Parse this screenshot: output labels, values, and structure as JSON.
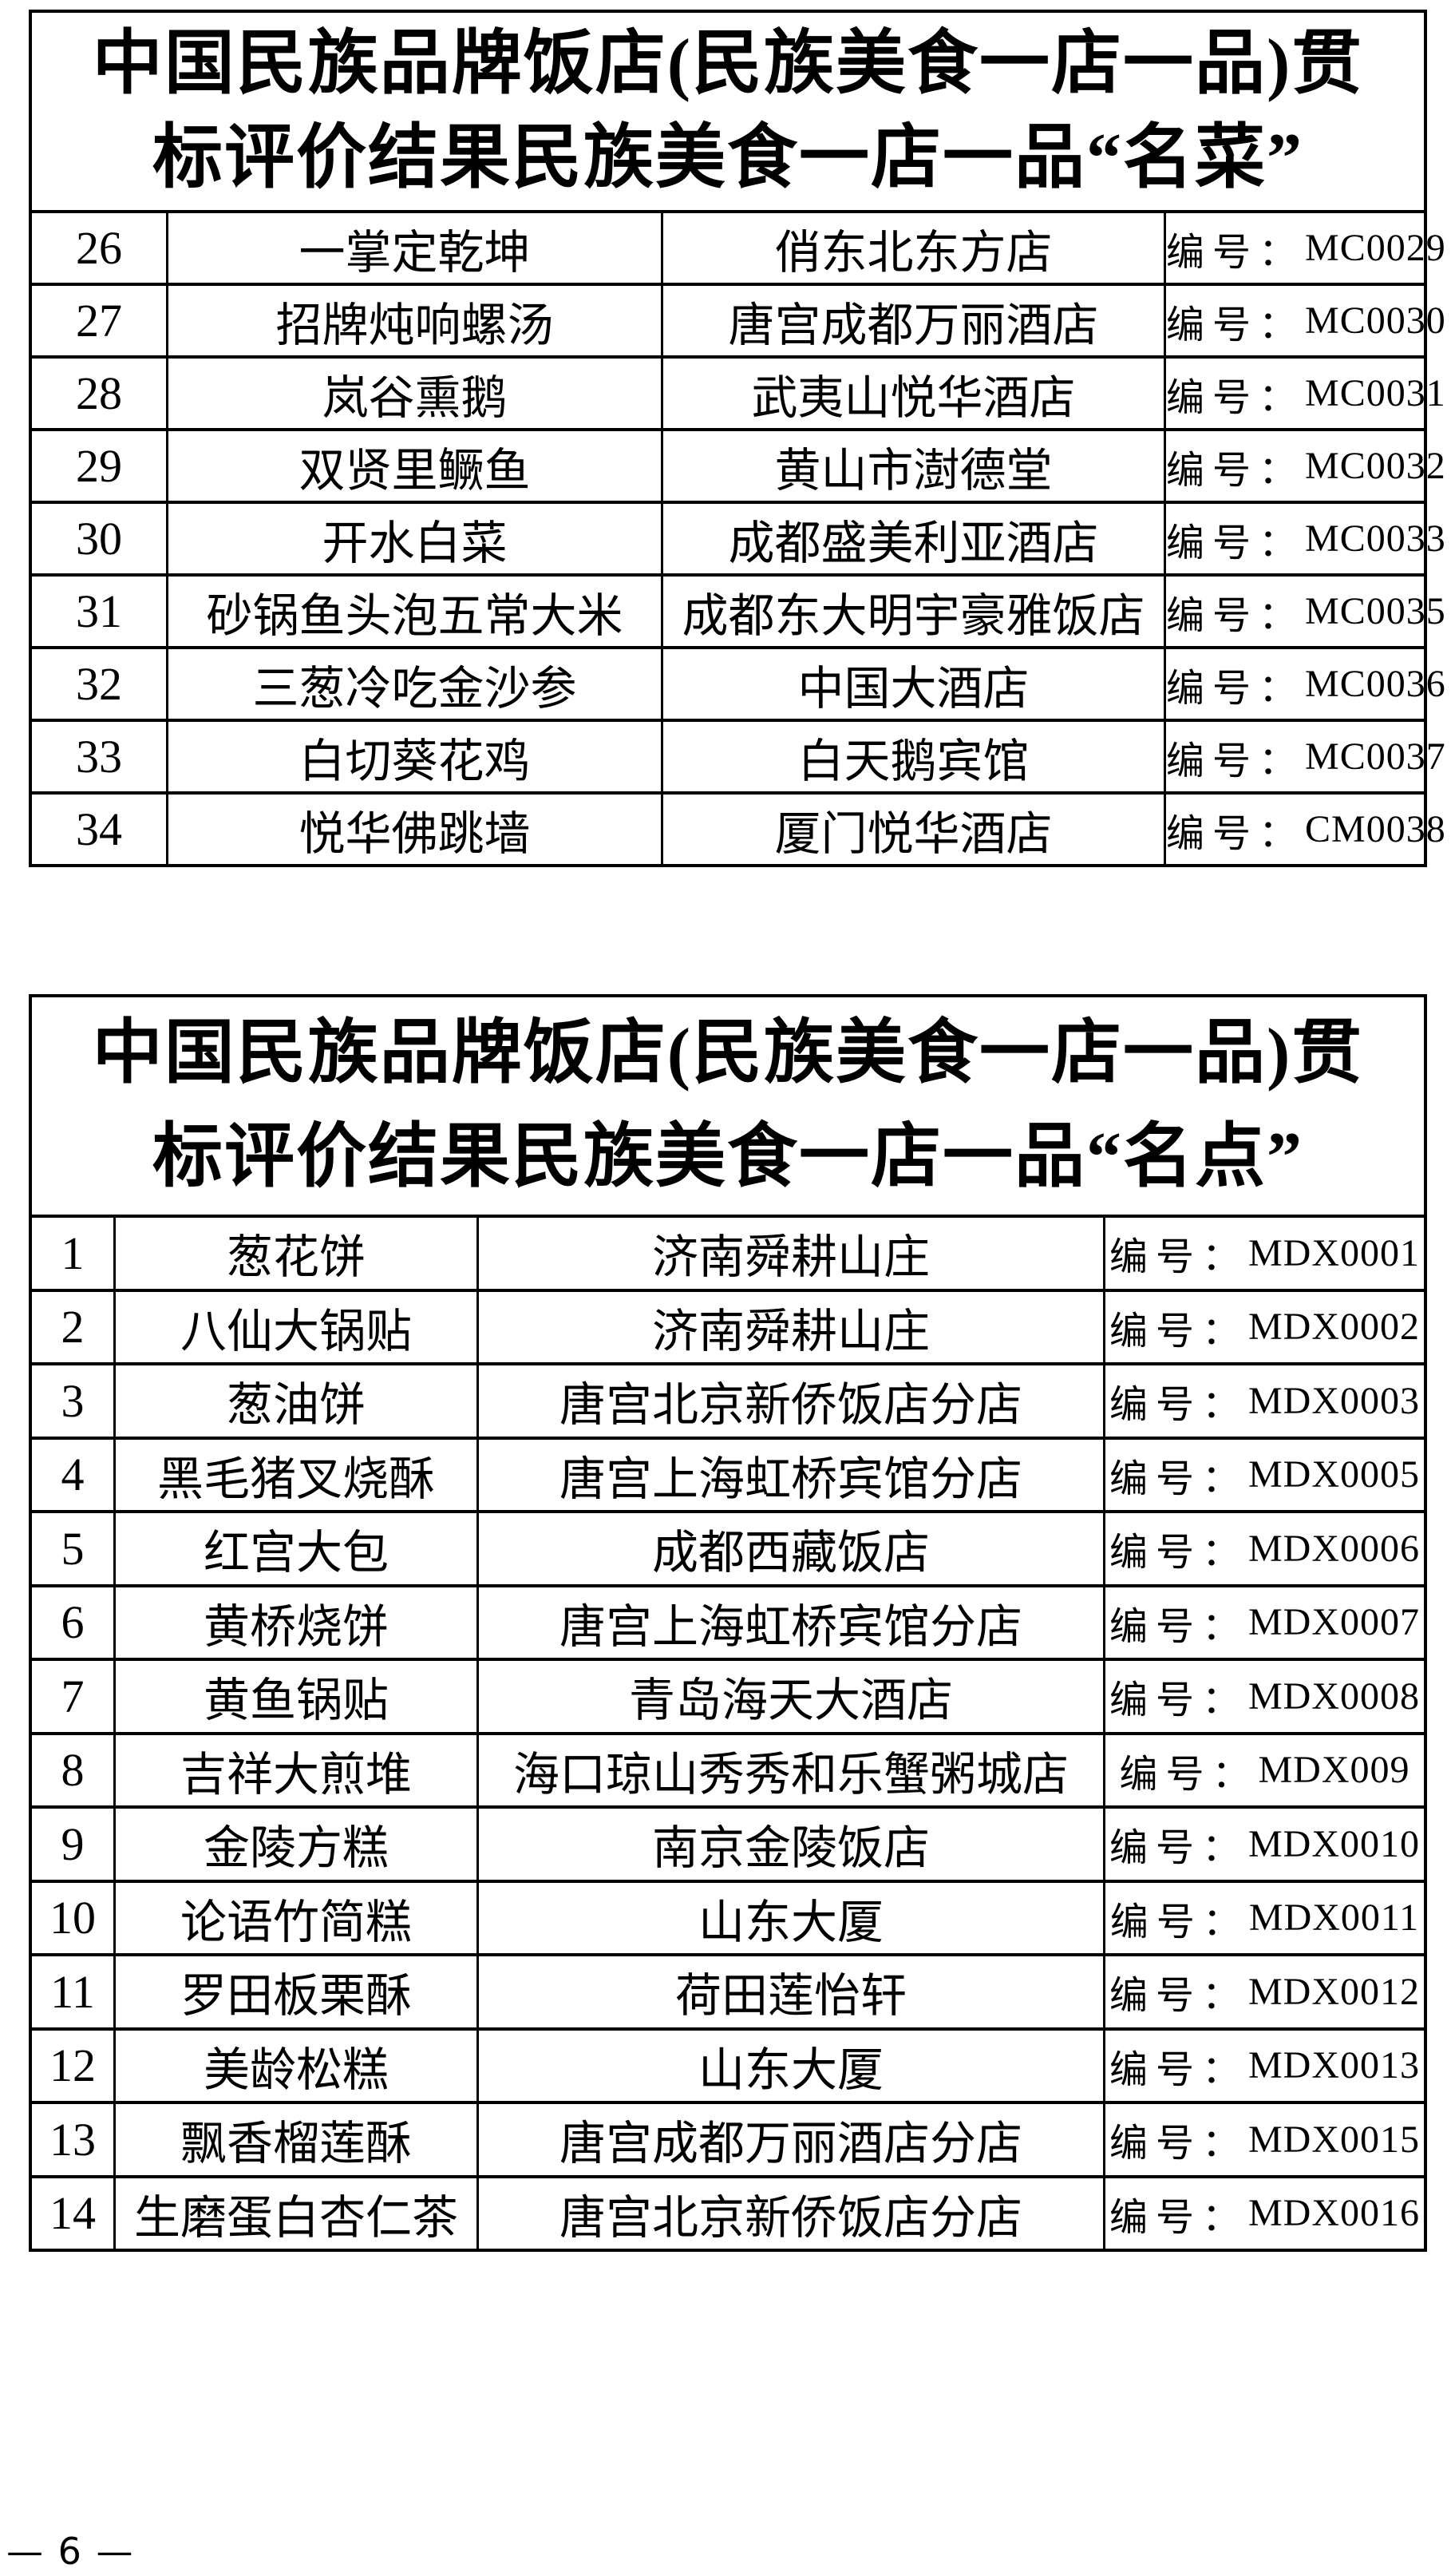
{
  "page": {
    "number_label": "— 6 —"
  },
  "table_mc": {
    "title_line1": "中国民族品牌饭店(民族美食一店一品)贯",
    "title_line2": "标评价结果民族美食一店一品“名菜”",
    "code_label": "编号：",
    "rows": [
      {
        "no": "26",
        "dish": "一掌定乾坤",
        "restaurant": "俏东北东方店",
        "code": "MC0029"
      },
      {
        "no": "27",
        "dish": "招牌炖响螺汤",
        "restaurant": "唐宫成都万丽酒店",
        "code": "MC0030"
      },
      {
        "no": "28",
        "dish": "岚谷熏鹅",
        "restaurant": "武夷山悦华酒店",
        "code": "MC0031"
      },
      {
        "no": "29",
        "dish": "双贤里鳜鱼",
        "restaurant": "黄山市澍德堂",
        "code": "MC0032"
      },
      {
        "no": "30",
        "dish": "开水白菜",
        "restaurant": "成都盛美利亚酒店",
        "code": "MC0033"
      },
      {
        "no": "31",
        "dish": "砂锅鱼头泡五常大米",
        "restaurant": "成都东大明宇豪雅饭店",
        "code": "MC0035"
      },
      {
        "no": "32",
        "dish": "三葱冷吃金沙参",
        "restaurant": "中国大酒店",
        "code": "MC0036"
      },
      {
        "no": "33",
        "dish": "白切葵花鸡",
        "restaurant": "白天鹅宾馆",
        "code": "MC0037"
      },
      {
        "no": "34",
        "dish": "悦华佛跳墙",
        "restaurant": "厦门悦华酒店",
        "code": "CM0038"
      }
    ]
  },
  "table_mdx": {
    "title_line1": "中国民族品牌饭店(民族美食一店一品)贯",
    "title_line2": "标评价结果民族美食一店一品“名点”",
    "code_label": "编号：",
    "rows": [
      {
        "no": "1",
        "dish": "葱花饼",
        "restaurant": "济南舜耕山庄",
        "code": "MDX0001"
      },
      {
        "no": "2",
        "dish": "八仙大锅贴",
        "restaurant": "济南舜耕山庄",
        "code": "MDX0002"
      },
      {
        "no": "3",
        "dish": "葱油饼",
        "restaurant": "唐宫北京新侨饭店分店",
        "code": "MDX0003"
      },
      {
        "no": "4",
        "dish": "黑毛猪叉烧酥",
        "restaurant": "唐宫上海虹桥宾馆分店",
        "code": "MDX0005"
      },
      {
        "no": "5",
        "dish": "红宫大包",
        "restaurant": "成都西藏饭店",
        "code": "MDX0006"
      },
      {
        "no": "6",
        "dish": "黄桥烧饼",
        "restaurant": "唐宫上海虹桥宾馆分店",
        "code": "MDX0007"
      },
      {
        "no": "7",
        "dish": "黄鱼锅贴",
        "restaurant": "青岛海天大酒店",
        "code": "MDX0008"
      },
      {
        "no": "8",
        "dish": "吉祥大煎堆",
        "restaurant": "海口琼山秀秀和乐蟹粥城店",
        "code": "MDX009"
      },
      {
        "no": "9",
        "dish": "金陵方糕",
        "restaurant": "南京金陵饭店",
        "code": "MDX0010"
      },
      {
        "no": "10",
        "dish": "论语竹简糕",
        "restaurant": "山东大厦",
        "code": "MDX0011"
      },
      {
        "no": "11",
        "dish": "罗田板栗酥",
        "restaurant": "荷田莲怡轩",
        "code": "MDX0012"
      },
      {
        "no": "12",
        "dish": "美龄松糕",
        "restaurant": "山东大厦",
        "code": "MDX0013"
      },
      {
        "no": "13",
        "dish": "飘香榴莲酥",
        "restaurant": "唐宫成都万丽酒店分店",
        "code": "MDX0015"
      },
      {
        "no": "14",
        "dish": "生磨蛋白杏仁茶",
        "restaurant": "唐宫北京新侨饭店分店",
        "code": "MDX0016"
      }
    ]
  }
}
